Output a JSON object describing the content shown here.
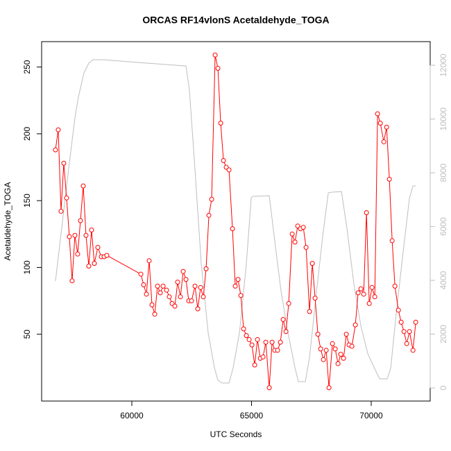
{
  "chart_data": {
    "type": "line",
    "title": "ORCAS RF14vlonS Acetaldehyde_TOGA",
    "x_label": "UTC Seconds",
    "y_label": "Acetaldehyde_TOGA",
    "xlim": [
      56232,
      72464
    ],
    "xticks": [
      60000,
      65000,
      70000
    ],
    "ylim": [
      0,
      269
    ],
    "yticks": [
      50,
      100,
      150,
      200,
      250
    ],
    "y2lim": [
      -490,
      12880
    ],
    "y2ticks": [
      0,
      2000,
      4000,
      6000,
      8000,
      10000,
      12000
    ],
    "y2_color": "#bebebe",
    "series": [
      {
        "color": "#bebebe",
        "axis": "y2",
        "markers": false,
        "x": [
          56810,
          57100,
          57390,
          57622,
          57767,
          57999,
          58202,
          58376,
          58840,
          60290,
          62262,
          62407,
          62610,
          62900,
          63190,
          63451,
          63596,
          63770,
          64060,
          64234,
          64495,
          64785,
          64988,
          65046,
          65742,
          65945,
          66235,
          66525,
          66815,
          66960,
          67250,
          67424,
          67685,
          67975,
          68207,
          68323,
          68758,
          68990,
          69280,
          69570,
          69860,
          70237,
          70353,
          70672,
          70817,
          71020,
          71310,
          71600,
          71745,
          71861
        ],
        "values": [
          3974,
          6168,
          8361,
          10039,
          10813,
          11716,
          12077,
          12206,
          12206,
          12103,
          11974,
          11071,
          8490,
          4619,
          2039,
          748,
          284,
          181,
          181,
          748,
          2039,
          4619,
          7071,
          7123,
          7148,
          5652,
          3587,
          2039,
          748,
          232,
          232,
          1135,
          3329,
          5652,
          7252,
          7277,
          7303,
          5910,
          3845,
          2297,
          1265,
          542,
          335,
          335,
          748,
          2555,
          4877,
          7071,
          7510,
          7510
        ]
      },
      {
        "color": "#ff0000",
        "markers": true,
        "x": [
          56810,
          56926,
          57042,
          57158,
          57274,
          57390,
          57506,
          57622,
          57738,
          57854,
          57970,
          58086,
          58202,
          58318,
          58434,
          58579,
          58724,
          58840,
          58956,
          60377,
          60493,
          60609,
          60725,
          60841,
          60957,
          61073,
          61189,
          61305,
          61450,
          61566,
          61682,
          61798,
          61914,
          62030,
          62146,
          62262,
          62378,
          62494,
          62639,
          62755,
          62871,
          62987,
          63103,
          63219,
          63335,
          63480,
          63596,
          63712,
          63828,
          63944,
          64060,
          64205,
          64321,
          64437,
          64553,
          64669,
          64785,
          64901,
          65017,
          65133,
          65249,
          65365,
          65481,
          65597,
          65742,
          65858,
          65974,
          66090,
          66206,
          66322,
          66438,
          66554,
          66699,
          66815,
          66931,
          67047,
          67163,
          67279,
          67424,
          67540,
          67656,
          67772,
          67888,
          68004,
          68120,
          68236,
          68381,
          68497,
          68613,
          68729,
          68845,
          68961,
          69077,
          69193,
          69338,
          69454,
          69570,
          69686,
          69802,
          69918,
          70034,
          70150,
          70266,
          70382,
          70527,
          70643,
          70759,
          70875,
          70991,
          71136,
          71252,
          71368,
          71484,
          71600,
          71745,
          71861
        ],
        "values": [
          188,
          203,
          142,
          178,
          152,
          123,
          90,
          124,
          110,
          135,
          161,
          124,
          101,
          128,
          103,
          115,
          108,
          108,
          109,
          95,
          87,
          80,
          105,
          72,
          65,
          86,
          81,
          86,
          83,
          78,
          73,
          71,
          89,
          78,
          97,
          91,
          75,
          75,
          86,
          69,
          85,
          78,
          99,
          139,
          151,
          259,
          249,
          208,
          180,
          175,
          173,
          129,
          86,
          91,
          79,
          54,
          49,
          46,
          42,
          27,
          46,
          32,
          33,
          44,
          10,
          44,
          38,
          38,
          44,
          61,
          52,
          73,
          125,
          119,
          131,
          129,
          130,
          115,
          67,
          103,
          77,
          50,
          39,
          31,
          38,
          10,
          43,
          39,
          28,
          35,
          32,
          50,
          42,
          41,
          57,
          81,
          84,
          80,
          141,
          73,
          85,
          78,
          215,
          208,
          194,
          205,
          166,
          120,
          86,
          68,
          59,
          52,
          43,
          52,
          38,
          59
        ]
      }
    ]
  }
}
